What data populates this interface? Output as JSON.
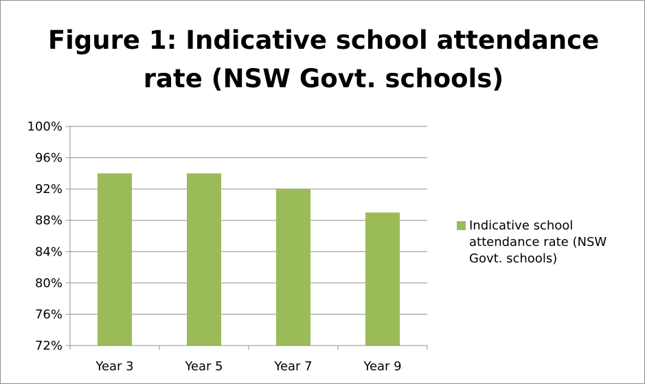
{
  "chart_data": {
    "type": "bar",
    "title": "Figure 1: Indicative school attendance rate (NSW Govt. schools)",
    "categories": [
      "Year 3",
      "Year 5",
      "Year 7",
      "Year 9"
    ],
    "series": [
      {
        "name": "Indicative school attendance rate (NSW Govt. schools)",
        "values": [
          94,
          94,
          92,
          89
        ],
        "color": "#9bbb59"
      }
    ],
    "ylim": [
      72,
      100
    ],
    "yticks": [
      72,
      76,
      80,
      84,
      88,
      92,
      96,
      100
    ],
    "ytick_labels": [
      "72%",
      "76%",
      "80%",
      "84%",
      "88%",
      "92%",
      "96%",
      "100%"
    ],
    "xlabel": "",
    "ylabel": "",
    "grid": true,
    "legend_position": "right"
  }
}
